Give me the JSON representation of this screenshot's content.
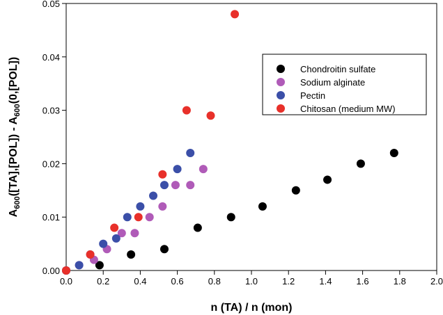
{
  "chart_data": {
    "type": "scatter",
    "xlabel": "n (TA) / n (mon)",
    "ylabel": "A600([TA],[POL]) - A600(0,[POL])",
    "xlim": [
      0.0,
      2.0
    ],
    "ylim": [
      0.0,
      0.05
    ],
    "xticks": [
      "0.0",
      "0.2",
      "0.4",
      "0.6",
      "0.8",
      "1.0",
      "1.2",
      "1.4",
      "1.6",
      "1.8",
      "2.0"
    ],
    "yticks": [
      "0.00",
      "0.01",
      "0.02",
      "0.03",
      "0.04",
      "0.05"
    ],
    "legend_position": "top-right",
    "grid": false,
    "series": [
      {
        "name": "Chondroitin sulfate",
        "color": "#000000",
        "points": [
          [
            0.0,
            0.0
          ],
          [
            0.18,
            0.001
          ],
          [
            0.35,
            0.003
          ],
          [
            0.53,
            0.004
          ],
          [
            0.71,
            0.008
          ],
          [
            0.89,
            0.01
          ],
          [
            1.06,
            0.012
          ],
          [
            1.24,
            0.015
          ],
          [
            1.41,
            0.017
          ],
          [
            1.59,
            0.02
          ],
          [
            1.77,
            0.022
          ]
        ]
      },
      {
        "name": "Sodium alginate",
        "color": "#b05bb8",
        "points": [
          [
            0.0,
            0.0
          ],
          [
            0.07,
            0.001
          ],
          [
            0.15,
            0.002
          ],
          [
            0.22,
            0.004
          ],
          [
            0.3,
            0.007
          ],
          [
            0.37,
            0.007
          ],
          [
            0.45,
            0.01
          ],
          [
            0.52,
            0.012
          ],
          [
            0.59,
            0.016
          ],
          [
            0.67,
            0.016
          ],
          [
            0.74,
            0.019
          ]
        ]
      },
      {
        "name": "Pectin",
        "color": "#3b4fa8",
        "points": [
          [
            0.0,
            0.0
          ],
          [
            0.07,
            0.001
          ],
          [
            0.13,
            0.003
          ],
          [
            0.2,
            0.005
          ],
          [
            0.27,
            0.006
          ],
          [
            0.33,
            0.01
          ],
          [
            0.4,
            0.012
          ],
          [
            0.47,
            0.014
          ],
          [
            0.53,
            0.016
          ],
          [
            0.6,
            0.019
          ],
          [
            0.67,
            0.022
          ]
        ]
      },
      {
        "name": "Chitosan (medium MW)",
        "color": "#e8302a",
        "points": [
          [
            0.0,
            0.0
          ],
          [
            0.13,
            0.003
          ],
          [
            0.26,
            0.008
          ],
          [
            0.39,
            0.01
          ],
          [
            0.52,
            0.018
          ],
          [
            0.65,
            0.03
          ],
          [
            0.78,
            0.029
          ],
          [
            0.91,
            0.048
          ]
        ]
      }
    ]
  }
}
